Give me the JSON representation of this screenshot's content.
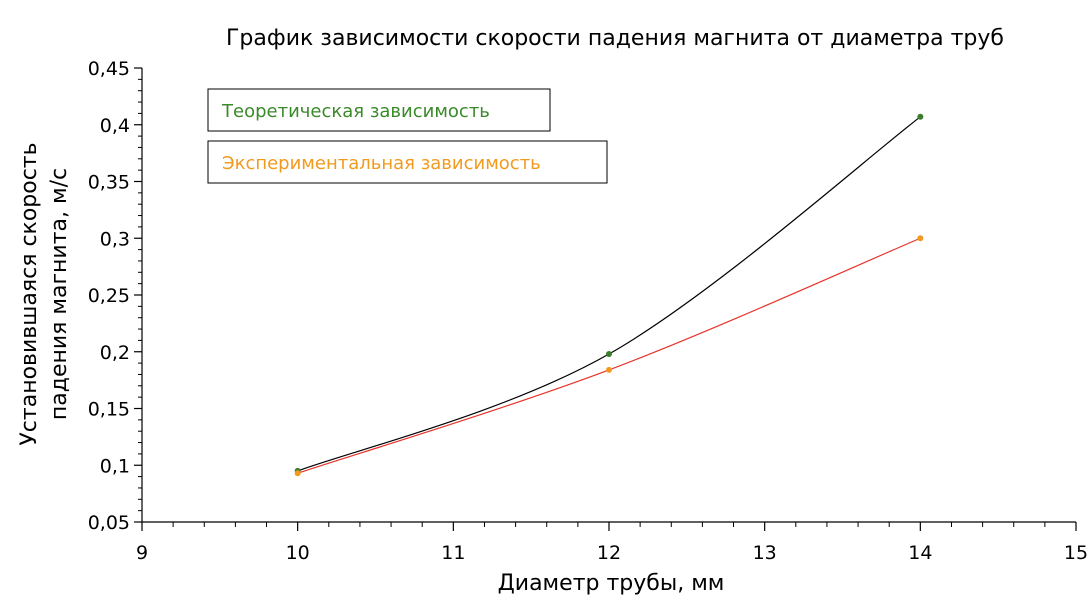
{
  "chart_data": {
    "type": "line",
    "title": "График зависимости скорости падения магнита от диаметра труб",
    "xlabel": "Диаметр трубы, мм",
    "ylabel_lines": [
      "Установившаяся скорость",
      "падения магнита, м/с"
    ],
    "xlim": [
      9,
      15
    ],
    "ylim": [
      0.05,
      0.45
    ],
    "x_ticks": [
      9,
      10,
      11,
      12,
      13,
      14,
      15
    ],
    "x_tick_labels": [
      "9",
      "10",
      "11",
      "12",
      "13",
      "14",
      "15"
    ],
    "y_ticks": [
      0.05,
      0.1,
      0.15,
      0.2,
      0.25,
      0.3,
      0.35,
      0.4,
      0.45
    ],
    "y_tick_labels": [
      "0,05",
      "0,1",
      "0,15",
      "0,2",
      "0,25",
      "0,3",
      "0,35",
      "0,4",
      "0,45"
    ],
    "grid": false,
    "legend_placement": "top-left",
    "series": [
      {
        "name": "Теоретическая зависимость",
        "x": [
          10,
          12,
          14
        ],
        "y": [
          0.095,
          0.198,
          0.407
        ],
        "line_color": "#000000",
        "marker_color": "#3a7d2c",
        "text_color": "#3a8a2a"
      },
      {
        "name": "Экспериментальная зависимость",
        "x": [
          10,
          12,
          14
        ],
        "y": [
          0.093,
          0.184,
          0.3
        ],
        "line_color": "#e8332a",
        "marker_color": "#f29a1f",
        "text_color": "#f29a1f"
      }
    ]
  }
}
